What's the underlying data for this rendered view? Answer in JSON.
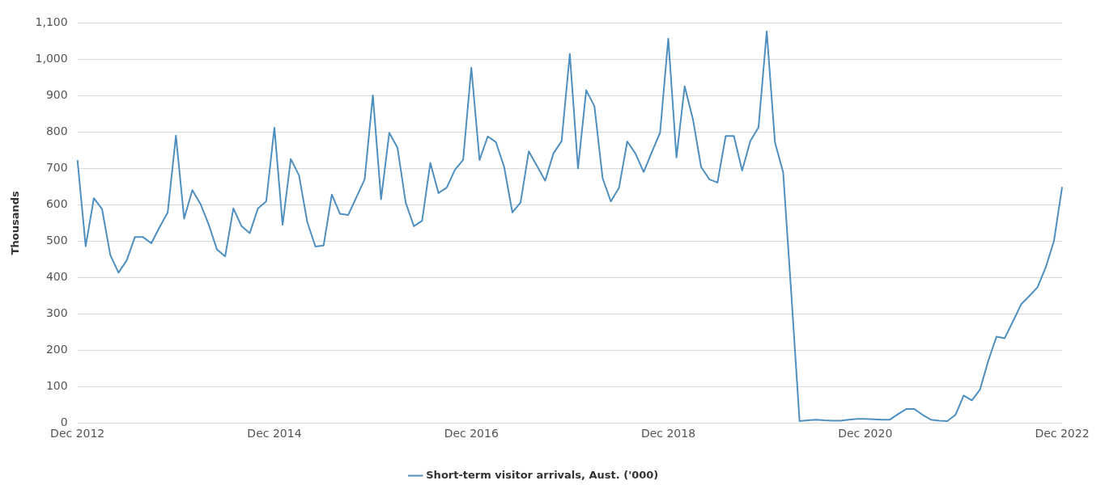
{
  "chart_data": {
    "type": "line",
    "ylabel": "Thousands",
    "categories": [
      "Dec 2012",
      null,
      null,
      null,
      null,
      null,
      null,
      null,
      null,
      null,
      null,
      null,
      null,
      null,
      null,
      null,
      null,
      null,
      null,
      null,
      null,
      null,
      null,
      null,
      "Dec 2014",
      null,
      null,
      null,
      null,
      null,
      null,
      null,
      null,
      null,
      null,
      null,
      null,
      null,
      null,
      null,
      null,
      null,
      null,
      null,
      null,
      null,
      null,
      null,
      "Dec 2016",
      null,
      null,
      null,
      null,
      null,
      null,
      null,
      null,
      null,
      null,
      null,
      null,
      null,
      null,
      null,
      null,
      null,
      null,
      null,
      null,
      null,
      null,
      null,
      "Dec 2018",
      null,
      null,
      null,
      null,
      null,
      null,
      null,
      null,
      null,
      null,
      null,
      null,
      null,
      null,
      null,
      null,
      null,
      null,
      null,
      null,
      null,
      null,
      null,
      "Dec 2020",
      null,
      null,
      null,
      null,
      null,
      null,
      null,
      null,
      null,
      null,
      null,
      null,
      null,
      null,
      null,
      null,
      null,
      null,
      null,
      null,
      null,
      null,
      null,
      "Dec 2022"
    ],
    "series": [
      {
        "name": "Short-term visitor arrivals, Aust. ('000)",
        "color": "#4f8fbf",
        "values": [
          723,
          486,
          618,
          588,
          462,
          413,
          447,
          511,
          511,
          494,
          538,
          579,
          790,
          562,
          640,
          602,
          545,
          477,
          458,
          590,
          541,
          522,
          590,
          609,
          812,
          545,
          726,
          681,
          553,
          485,
          488,
          628,
          575,
          572,
          621,
          670,
          901,
          615,
          798,
          757,
          606,
          541,
          556,
          715,
          632,
          647,
          696,
          723,
          977,
          723,
          788,
          772,
          704,
          579,
          606,
          747,
          707,
          666,
          741,
          775,
          1015,
          700,
          915,
          871,
          673,
          609,
          647,
          774,
          741,
          690,
          745,
          798,
          1057,
          730,
          926,
          836,
          704,
          670,
          661,
          789,
          789,
          694,
          775,
          813,
          1077,
          772,
          689,
          353,
          5,
          7,
          9,
          7,
          6,
          6,
          9,
          11,
          11,
          10,
          9,
          9,
          24,
          38,
          38,
          22,
          9,
          6,
          5,
          22,
          75,
          62,
          92,
          171,
          237,
          233,
          279,
          326,
          349,
          373,
          428,
          500,
          649
        ]
      }
    ],
    "ylim": [
      0,
      1100
    ],
    "yticks": [
      0,
      100,
      200,
      300,
      400,
      500,
      600,
      700,
      800,
      900,
      {
        "value": 1000,
        "label": "1,000"
      },
      {
        "value": 1100,
        "label": "1,100"
      }
    ],
    "grid": "y",
    "legend": "bottom",
    "marker": "none",
    "line_style": "solid"
  }
}
